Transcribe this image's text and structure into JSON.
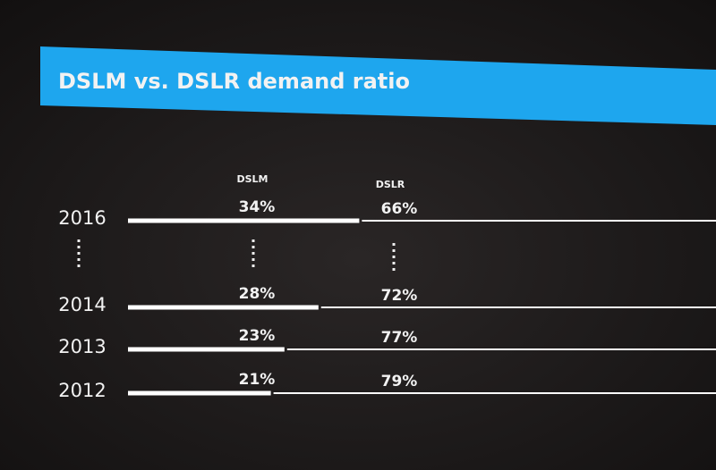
{
  "chart_data": {
    "type": "stacked-bar",
    "title": "DSLM vs. DSLR demand ratio",
    "categories": [
      "2016",
      "2014",
      "2013",
      "2012"
    ],
    "series": [
      {
        "name": "DSLM",
        "color": "#ffffff",
        "values": [
          34,
          28,
          23,
          21
        ],
        "value_labels": [
          "34%",
          "28%",
          "23%",
          "21%"
        ]
      },
      {
        "name": "DSLR",
        "color": "#ffffff",
        "values": [
          66,
          72,
          77,
          79
        ],
        "value_labels": [
          "66%",
          "72%",
          "77%",
          "79%"
        ]
      }
    ]
  }
}
